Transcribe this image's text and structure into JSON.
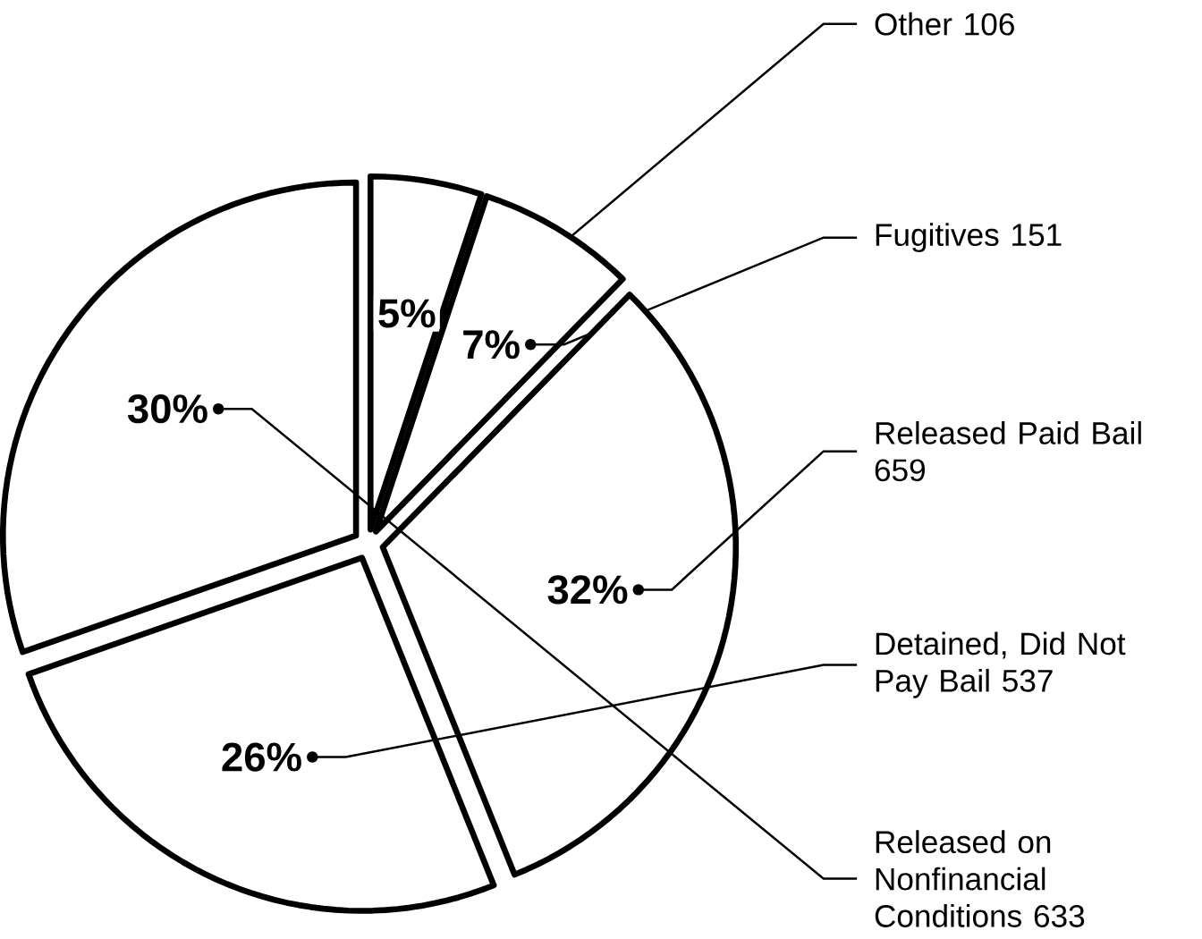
{
  "chart_data": {
    "type": "pie",
    "categories": [
      "Other",
      "Fugitives",
      "Released Paid Bail",
      "Detained, Did Not Pay Bail",
      "Released on Nonfinancial Conditions"
    ],
    "values": [
      106,
      151,
      659,
      537,
      633
    ],
    "colors": [
      "#ffffff",
      "#ffffff",
      "#ffffff",
      "#ffffff",
      "#ffffff"
    ],
    "data_labels": true,
    "annotations": [
      "5%",
      "7%",
      "32%",
      "26%",
      "30%"
    ]
  }
}
